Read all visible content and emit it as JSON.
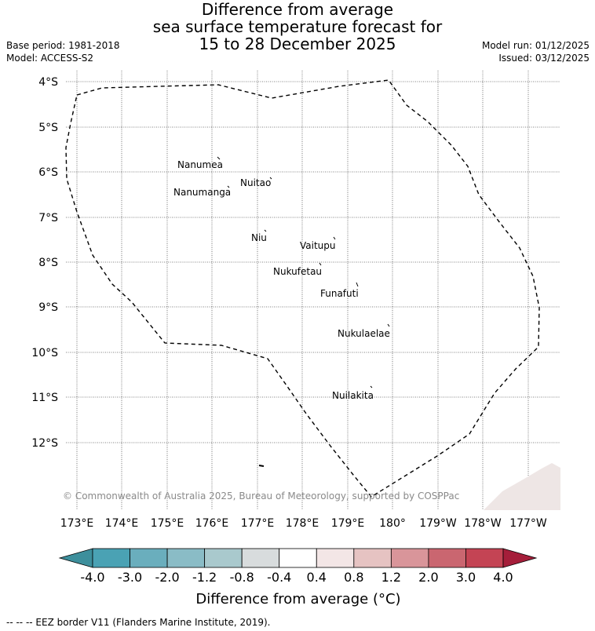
{
  "title": {
    "line1": "Difference from average",
    "line2": "sea surface temperature forecast for",
    "line3": "15 to 28 December 2025"
  },
  "meta": {
    "base_period": "Base period: 1981-2018",
    "model": "Model: ACCESS-S2",
    "model_run": "Model run: 01/12/2025",
    "issued": "Issued: 03/12/2025"
  },
  "map": {
    "lat_labels": [
      "4°S",
      "5°S",
      "6°S",
      "7°S",
      "8°S",
      "9°S",
      "10°S",
      "11°S",
      "12°S"
    ],
    "lon_labels": [
      "173°E",
      "174°E",
      "175°E",
      "176°E",
      "177°E",
      "178°E",
      "179°E",
      "180°",
      "179°W",
      "178°W",
      "177°W"
    ],
    "islands": [
      "Nanumea",
      "Nuitao",
      "Nanumanga",
      "Niu",
      "Vaitupu",
      "Nukufetau",
      "Funafuti",
      "Nukulaelae",
      "Nuilakita"
    ],
    "copyright": "© Commonwealth of Australia 2025, Bureau of Meteorology, supported by COSPPac",
    "eez_style": "dashed",
    "grid": "dotted"
  },
  "colorbar": {
    "ticks": [
      "-4.0",
      "-3.0",
      "-2.0",
      "-1.2",
      "-0.8",
      "-0.4",
      "0.4",
      "0.8",
      "1.2",
      "2.0",
      "3.0",
      "4.0"
    ],
    "colors": [
      "#3d8f9c",
      "#4aa2b4",
      "#6aaebd",
      "#8abcc6",
      "#a9c9cd",
      "#d8dcdd",
      "#ffffff",
      "#f3e6e6",
      "#e6c3c2",
      "#d9959a",
      "#ca6670",
      "#c44454",
      "#a51e3a"
    ],
    "label": "Difference from average (°C)"
  },
  "footer": "-- -- -- EEZ border V11 (Flanders Marine Institute, 2019)."
}
